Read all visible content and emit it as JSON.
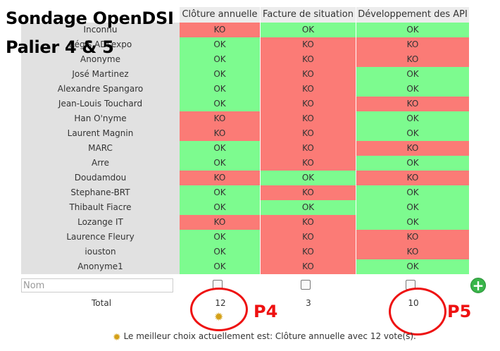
{
  "overlay": {
    "title_line1": "Sondage OpenDSI",
    "title_line2": "Palier 4 & 5"
  },
  "columns": [
    "Clôture annuelle",
    "Facture de situation",
    "Développement des API"
  ],
  "colors": {
    "ok": "#7dfb8f",
    "ko": "#fb7b76",
    "name_bg": "#e1e1e1",
    "annotation": "#ee1111"
  },
  "rows": [
    {
      "name": "Inconnu",
      "votes": [
        "KO",
        "OK",
        "OK"
      ]
    },
    {
      "name": "Régis ADLexpo",
      "votes": [
        "OK",
        "KO",
        "KO"
      ]
    },
    {
      "name": "Anonyme",
      "votes": [
        "OK",
        "KO",
        "KO"
      ]
    },
    {
      "name": "José Martinez",
      "votes": [
        "OK",
        "KO",
        "OK"
      ]
    },
    {
      "name": "Alexandre Spangaro",
      "votes": [
        "OK",
        "KO",
        "OK"
      ]
    },
    {
      "name": "Jean-Louis Touchard",
      "votes": [
        "OK",
        "KO",
        "KO"
      ]
    },
    {
      "name": "Han O'nyme",
      "votes": [
        "KO",
        "KO",
        "OK"
      ]
    },
    {
      "name": "Laurent Magnin",
      "votes": [
        "KO",
        "KO",
        "OK"
      ]
    },
    {
      "name": "MARC",
      "votes": [
        "OK",
        "KO",
        "KO"
      ]
    },
    {
      "name": "Arre",
      "votes": [
        "OK",
        "KO",
        "OK"
      ]
    },
    {
      "name": "Doudamdou",
      "votes": [
        "KO",
        "OK",
        "KO"
      ]
    },
    {
      "name": "Stephane-BRT",
      "votes": [
        "OK",
        "KO",
        "OK"
      ]
    },
    {
      "name": "Thibault Fiacre",
      "votes": [
        "OK",
        "OK",
        "OK"
      ]
    },
    {
      "name": "Lozange IT",
      "votes": [
        "KO",
        "KO",
        "OK"
      ]
    },
    {
      "name": "Laurence Fleury",
      "votes": [
        "OK",
        "KO",
        "KO"
      ]
    },
    {
      "name": "iouston",
      "votes": [
        "OK",
        "KO",
        "KO"
      ]
    },
    {
      "name": "Anonyme1",
      "votes": [
        "OK",
        "KO",
        "OK"
      ]
    }
  ],
  "form": {
    "name_placeholder": "Nom",
    "add_button": "+"
  },
  "totals": {
    "label": "Total",
    "values": [
      "12",
      "3",
      "10"
    ]
  },
  "annotations": {
    "p4": "P4",
    "p5": "P5"
  },
  "best_choice": "Le meilleur choix actuellement est: Clôture annuelle avec 12 vote(s)."
}
